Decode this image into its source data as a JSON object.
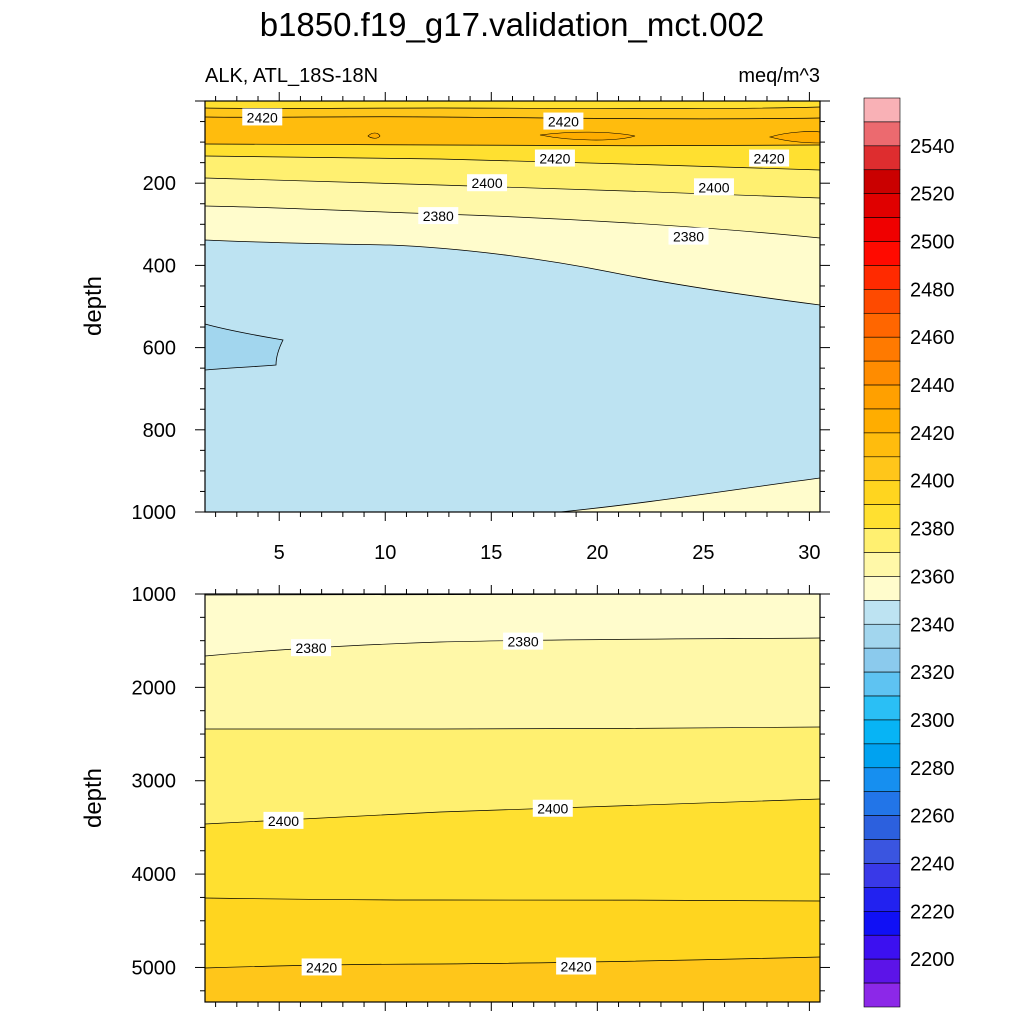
{
  "chart_data": {
    "type": "contour",
    "title": "b1850.f19_g17.validation_mct.002",
    "variable_label": "ALK, ATL_18S-18N",
    "units": "meq/m^3",
    "panels": [
      {
        "name": "upper",
        "ylabel": "depth",
        "ylim": [
          1000,
          0
        ],
        "xlim": [
          1.5,
          30.5
        ],
        "xticks": [
          "5",
          "10",
          "15",
          "20",
          "25",
          "30"
        ],
        "yticks": [
          "200",
          "400",
          "600",
          "800",
          "1000"
        ],
        "contour_labels": [
          {
            "text": "2420",
            "x": 4.2,
            "y": 40
          },
          {
            "text": "2420",
            "x": 18.4,
            "y": 50
          },
          {
            "text": "2420",
            "x": 18.0,
            "y": 140
          },
          {
            "text": "2420",
            "x": 28.1,
            "y": 140
          },
          {
            "text": "2400",
            "x": 14.8,
            "y": 200
          },
          {
            "text": "2400",
            "x": 25.5,
            "y": 210
          },
          {
            "text": "2380",
            "x": 12.5,
            "y": 280
          },
          {
            "text": "2380",
            "x": 24.3,
            "y": 330
          }
        ]
      },
      {
        "name": "lower",
        "ylabel": "depth",
        "ylim": [
          5370,
          1000
        ],
        "xlim": [
          1.5,
          30.5
        ],
        "xticks": [],
        "yticks": [
          "1000",
          "2000",
          "3000",
          "4000",
          "5000"
        ],
        "contour_labels": [
          {
            "text": "2380",
            "x": 6.5,
            "y": 1580
          },
          {
            "text": "2380",
            "x": 16.5,
            "y": 1510
          },
          {
            "text": "2400",
            "x": 5.2,
            "y": 3430
          },
          {
            "text": "2400",
            "x": 17.9,
            "y": 3300
          },
          {
            "text": "2420",
            "x": 7.0,
            "y": 5000
          },
          {
            "text": "2420",
            "x": 19.0,
            "y": 4990
          }
        ]
      }
    ],
    "colorbar": {
      "labels": [
        "2540",
        "2520",
        "2500",
        "2480",
        "2460",
        "2440",
        "2420",
        "2400",
        "2380",
        "2360",
        "2340",
        "2320",
        "2300",
        "2280",
        "2260",
        "2240",
        "2220",
        "2200"
      ],
      "colors": [
        "#f9b1b6",
        "#ec6a6f",
        "#de2d2f",
        "#ca0000",
        "#e00000",
        "#f00000",
        "#ff0a00",
        "#ff2a00",
        "#fe4a00",
        "#ff6600",
        "#ff7a00",
        "#ff8c00",
        "#ffa000",
        "#ffad00",
        "#ffbc0d",
        "#ffc61a",
        "#ffd51f",
        "#ffe030",
        "#fff070",
        "#fff8a8",
        "#fffccc",
        "#bde3f2",
        "#a2d6ee",
        "#8bcaed",
        "#5ec3f2",
        "#2abff5",
        "#07b4f5",
        "#00a2f0",
        "#168ff0",
        "#2275e8",
        "#2c60de",
        "#3a55e0",
        "#3939e8",
        "#2222f0",
        "#1010f5",
        "#3c10f0",
        "#5c14e8",
        "#8c28e8"
      ]
    }
  }
}
